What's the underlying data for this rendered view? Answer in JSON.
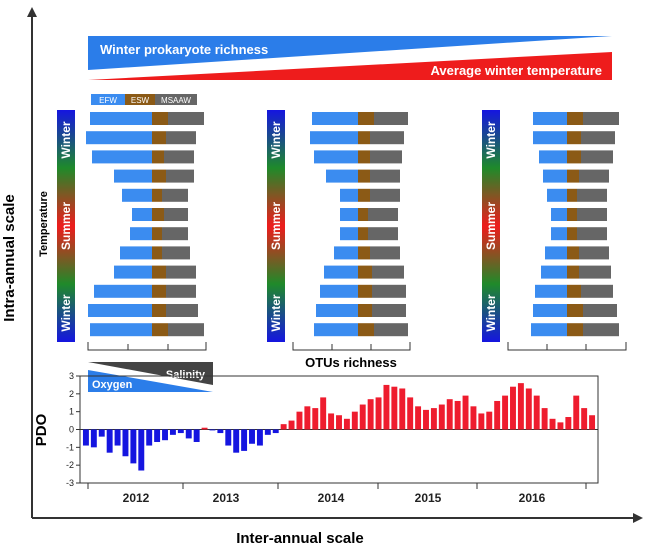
{
  "axes": {
    "y_label": "Intra-annual scale",
    "x_label": "Inter-annual scale"
  },
  "banner": {
    "richness_label": "Winter prokaryote richness",
    "temperature_label": "Average  winter temperature",
    "richness_color": "#2b7de9",
    "temperature_color": "#ee1c1c"
  },
  "legend": {
    "items": [
      {
        "label": "EFW",
        "color": "#3b8cf0"
      },
      {
        "label": "ESW",
        "color": "#8b5a16"
      },
      {
        "label": "MSAAW",
        "color": "#666666"
      }
    ]
  },
  "season_bar": {
    "label": "Temperature",
    "top": "Winter",
    "middle": "Summer",
    "bottom": "Winter",
    "colors": [
      "#1515e0",
      "#1f8a2a",
      "#ee1c1c",
      "#1f8a2a",
      "#1515e0"
    ]
  },
  "profiles": [
    {
      "name": "panel-1",
      "rows": [
        {
          "efw": 62,
          "esw": 16,
          "msaaw": 36
        },
        {
          "efw": 66,
          "esw": 14,
          "msaaw": 30
        },
        {
          "efw": 60,
          "esw": 12,
          "msaaw": 30
        },
        {
          "efw": 38,
          "esw": 14,
          "msaaw": 28
        },
        {
          "efw": 30,
          "esw": 10,
          "msaaw": 26
        },
        {
          "efw": 20,
          "esw": 12,
          "msaaw": 24
        },
        {
          "efw": 22,
          "esw": 10,
          "msaaw": 26
        },
        {
          "efw": 32,
          "esw": 10,
          "msaaw": 28
        },
        {
          "efw": 38,
          "esw": 14,
          "msaaw": 30
        },
        {
          "efw": 58,
          "esw": 14,
          "msaaw": 30
        },
        {
          "efw": 64,
          "esw": 14,
          "msaaw": 32
        },
        {
          "efw": 62,
          "esw": 16,
          "msaaw": 36
        }
      ]
    },
    {
      "name": "panel-2",
      "rows": [
        {
          "efw": 46,
          "esw": 16,
          "msaaw": 34
        },
        {
          "efw": 48,
          "esw": 12,
          "msaaw": 34
        },
        {
          "efw": 44,
          "esw": 12,
          "msaaw": 32
        },
        {
          "efw": 32,
          "esw": 12,
          "msaaw": 30
        },
        {
          "efw": 18,
          "esw": 12,
          "msaaw": 30
        },
        {
          "efw": 18,
          "esw": 10,
          "msaaw": 30
        },
        {
          "efw": 18,
          "esw": 10,
          "msaaw": 30
        },
        {
          "efw": 24,
          "esw": 12,
          "msaaw": 30
        },
        {
          "efw": 34,
          "esw": 14,
          "msaaw": 32
        },
        {
          "efw": 38,
          "esw": 14,
          "msaaw": 34
        },
        {
          "efw": 42,
          "esw": 14,
          "msaaw": 34
        },
        {
          "efw": 44,
          "esw": 16,
          "msaaw": 34
        }
      ]
    },
    {
      "name": "panel-3",
      "rows": [
        {
          "efw": 34,
          "esw": 16,
          "msaaw": 36
        },
        {
          "efw": 34,
          "esw": 14,
          "msaaw": 34
        },
        {
          "efw": 28,
          "esw": 14,
          "msaaw": 32
        },
        {
          "efw": 24,
          "esw": 12,
          "msaaw": 30
        },
        {
          "efw": 20,
          "esw": 10,
          "msaaw": 30
        },
        {
          "efw": 16,
          "esw": 10,
          "msaaw": 30
        },
        {
          "efw": 16,
          "esw": 10,
          "msaaw": 30
        },
        {
          "efw": 22,
          "esw": 12,
          "msaaw": 30
        },
        {
          "efw": 26,
          "esw": 12,
          "msaaw": 32
        },
        {
          "efw": 32,
          "esw": 14,
          "msaaw": 32
        },
        {
          "efw": 34,
          "esw": 16,
          "msaaw": 34
        },
        {
          "efw": 36,
          "esw": 16,
          "msaaw": 36
        }
      ]
    }
  ],
  "otus_label": "OTUs richness",
  "oxy_sal": {
    "oxygen_label": "Oxygen",
    "salinity_label": "Salinity",
    "oxygen_color": "#2b7de9",
    "salinity_color": "#444444"
  },
  "chart_data": {
    "type": "bar",
    "title": "",
    "ylabel": "PDO",
    "xlabel": "",
    "ylim": [
      -3,
      3
    ],
    "yticks": [
      3,
      2,
      1,
      0,
      -1,
      -2,
      -3
    ],
    "year_labels": [
      "2012",
      "2013",
      "2014",
      "2015",
      "2016"
    ],
    "positive_color": "#ee1c2e",
    "negative_color": "#1515e0",
    "values": [
      -0.9,
      -1.0,
      -0.4,
      -1.3,
      -0.9,
      -1.5,
      -1.9,
      -2.3,
      -0.9,
      -0.7,
      -0.6,
      -0.3,
      -0.2,
      -0.5,
      -0.7,
      0.1,
      -0.05,
      -0.2,
      -0.9,
      -1.3,
      -1.2,
      -0.8,
      -0.9,
      -0.3,
      -0.2,
      0.3,
      0.5,
      1.0,
      1.3,
      1.2,
      1.8,
      0.9,
      0.8,
      0.6,
      1.0,
      1.4,
      1.7,
      1.8,
      2.5,
      2.4,
      2.3,
      1.8,
      1.3,
      1.1,
      1.2,
      1.4,
      1.7,
      1.6,
      1.9,
      1.3,
      0.9,
      1.0,
      1.6,
      1.9,
      2.4,
      2.6,
      2.3,
      1.9,
      1.2,
      0.6,
      0.4,
      0.7,
      1.9,
      1.2,
      0.8
    ]
  }
}
